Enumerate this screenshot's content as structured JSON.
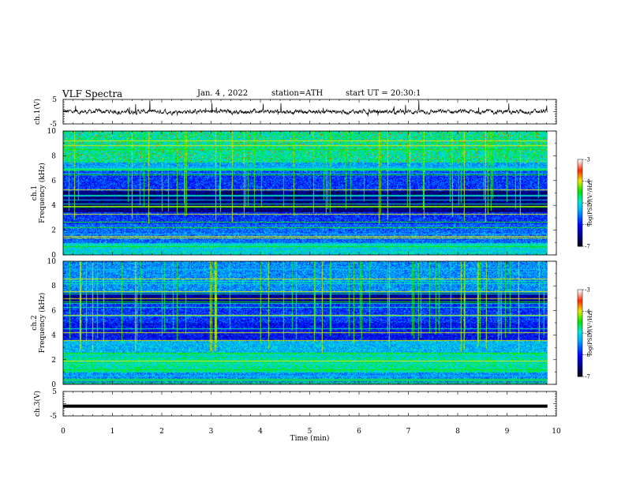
{
  "header": {
    "title": "VLF Spectra",
    "date": "Jan. 4 , 2022",
    "station": "station=ATH",
    "start": "start UT = 20:30:1"
  },
  "chart_data": [
    {
      "type": "line",
      "name": "ch1-waveform",
      "ylabel": "ch.1(V)",
      "ylim": [
        -5,
        5
      ],
      "yticks": [
        "5",
        "-5"
      ],
      "xlim": [
        0,
        10
      ],
      "description_level": 0
    },
    {
      "type": "heatmap",
      "name": "ch1-spectrogram",
      "ylabel": "ch.1\nFrequency (kHz)",
      "ylim": [
        0,
        10
      ],
      "yticks": [
        0,
        2,
        4,
        6,
        8,
        10
      ],
      "xlim": [
        0,
        10
      ],
      "data_end_min": 9.82,
      "colorbar": {
        "label": "log(PSD)(V²/Hz)",
        "range": [
          -7,
          -3
        ],
        "ticks": [
          "-3",
          "-4",
          "-5",
          "-6",
          "-7"
        ]
      }
    },
    {
      "type": "heatmap",
      "name": "ch2-spectrogram",
      "ylabel": "ch.2\nFrequency (kHz)",
      "ylim": [
        0,
        10
      ],
      "yticks": [
        0,
        2,
        4,
        6,
        8,
        10
      ],
      "xlim": [
        0,
        10
      ],
      "data_end_min": 9.82,
      "colorbar": {
        "label": "log(PSD)(V²/Hz)",
        "range": [
          -7,
          -3
        ],
        "ticks": [
          "-3",
          "-4",
          "-5",
          "-6",
          "-7"
        ]
      }
    },
    {
      "type": "line",
      "name": "ch3-waveform",
      "ylabel": "ch.3(V)",
      "ylim": [
        -5,
        5
      ],
      "yticks": [
        "5",
        "-5"
      ],
      "xlim": [
        0,
        10
      ],
      "level": -1.0
    }
  ],
  "xaxis": {
    "label": "Time (min)",
    "ticks": [
      "0",
      "1",
      "2",
      "3",
      "4",
      "5",
      "6",
      "7",
      "8",
      "9",
      "10"
    ]
  },
  "colors": {
    "line": "#000000",
    "background": "#ffffff"
  }
}
